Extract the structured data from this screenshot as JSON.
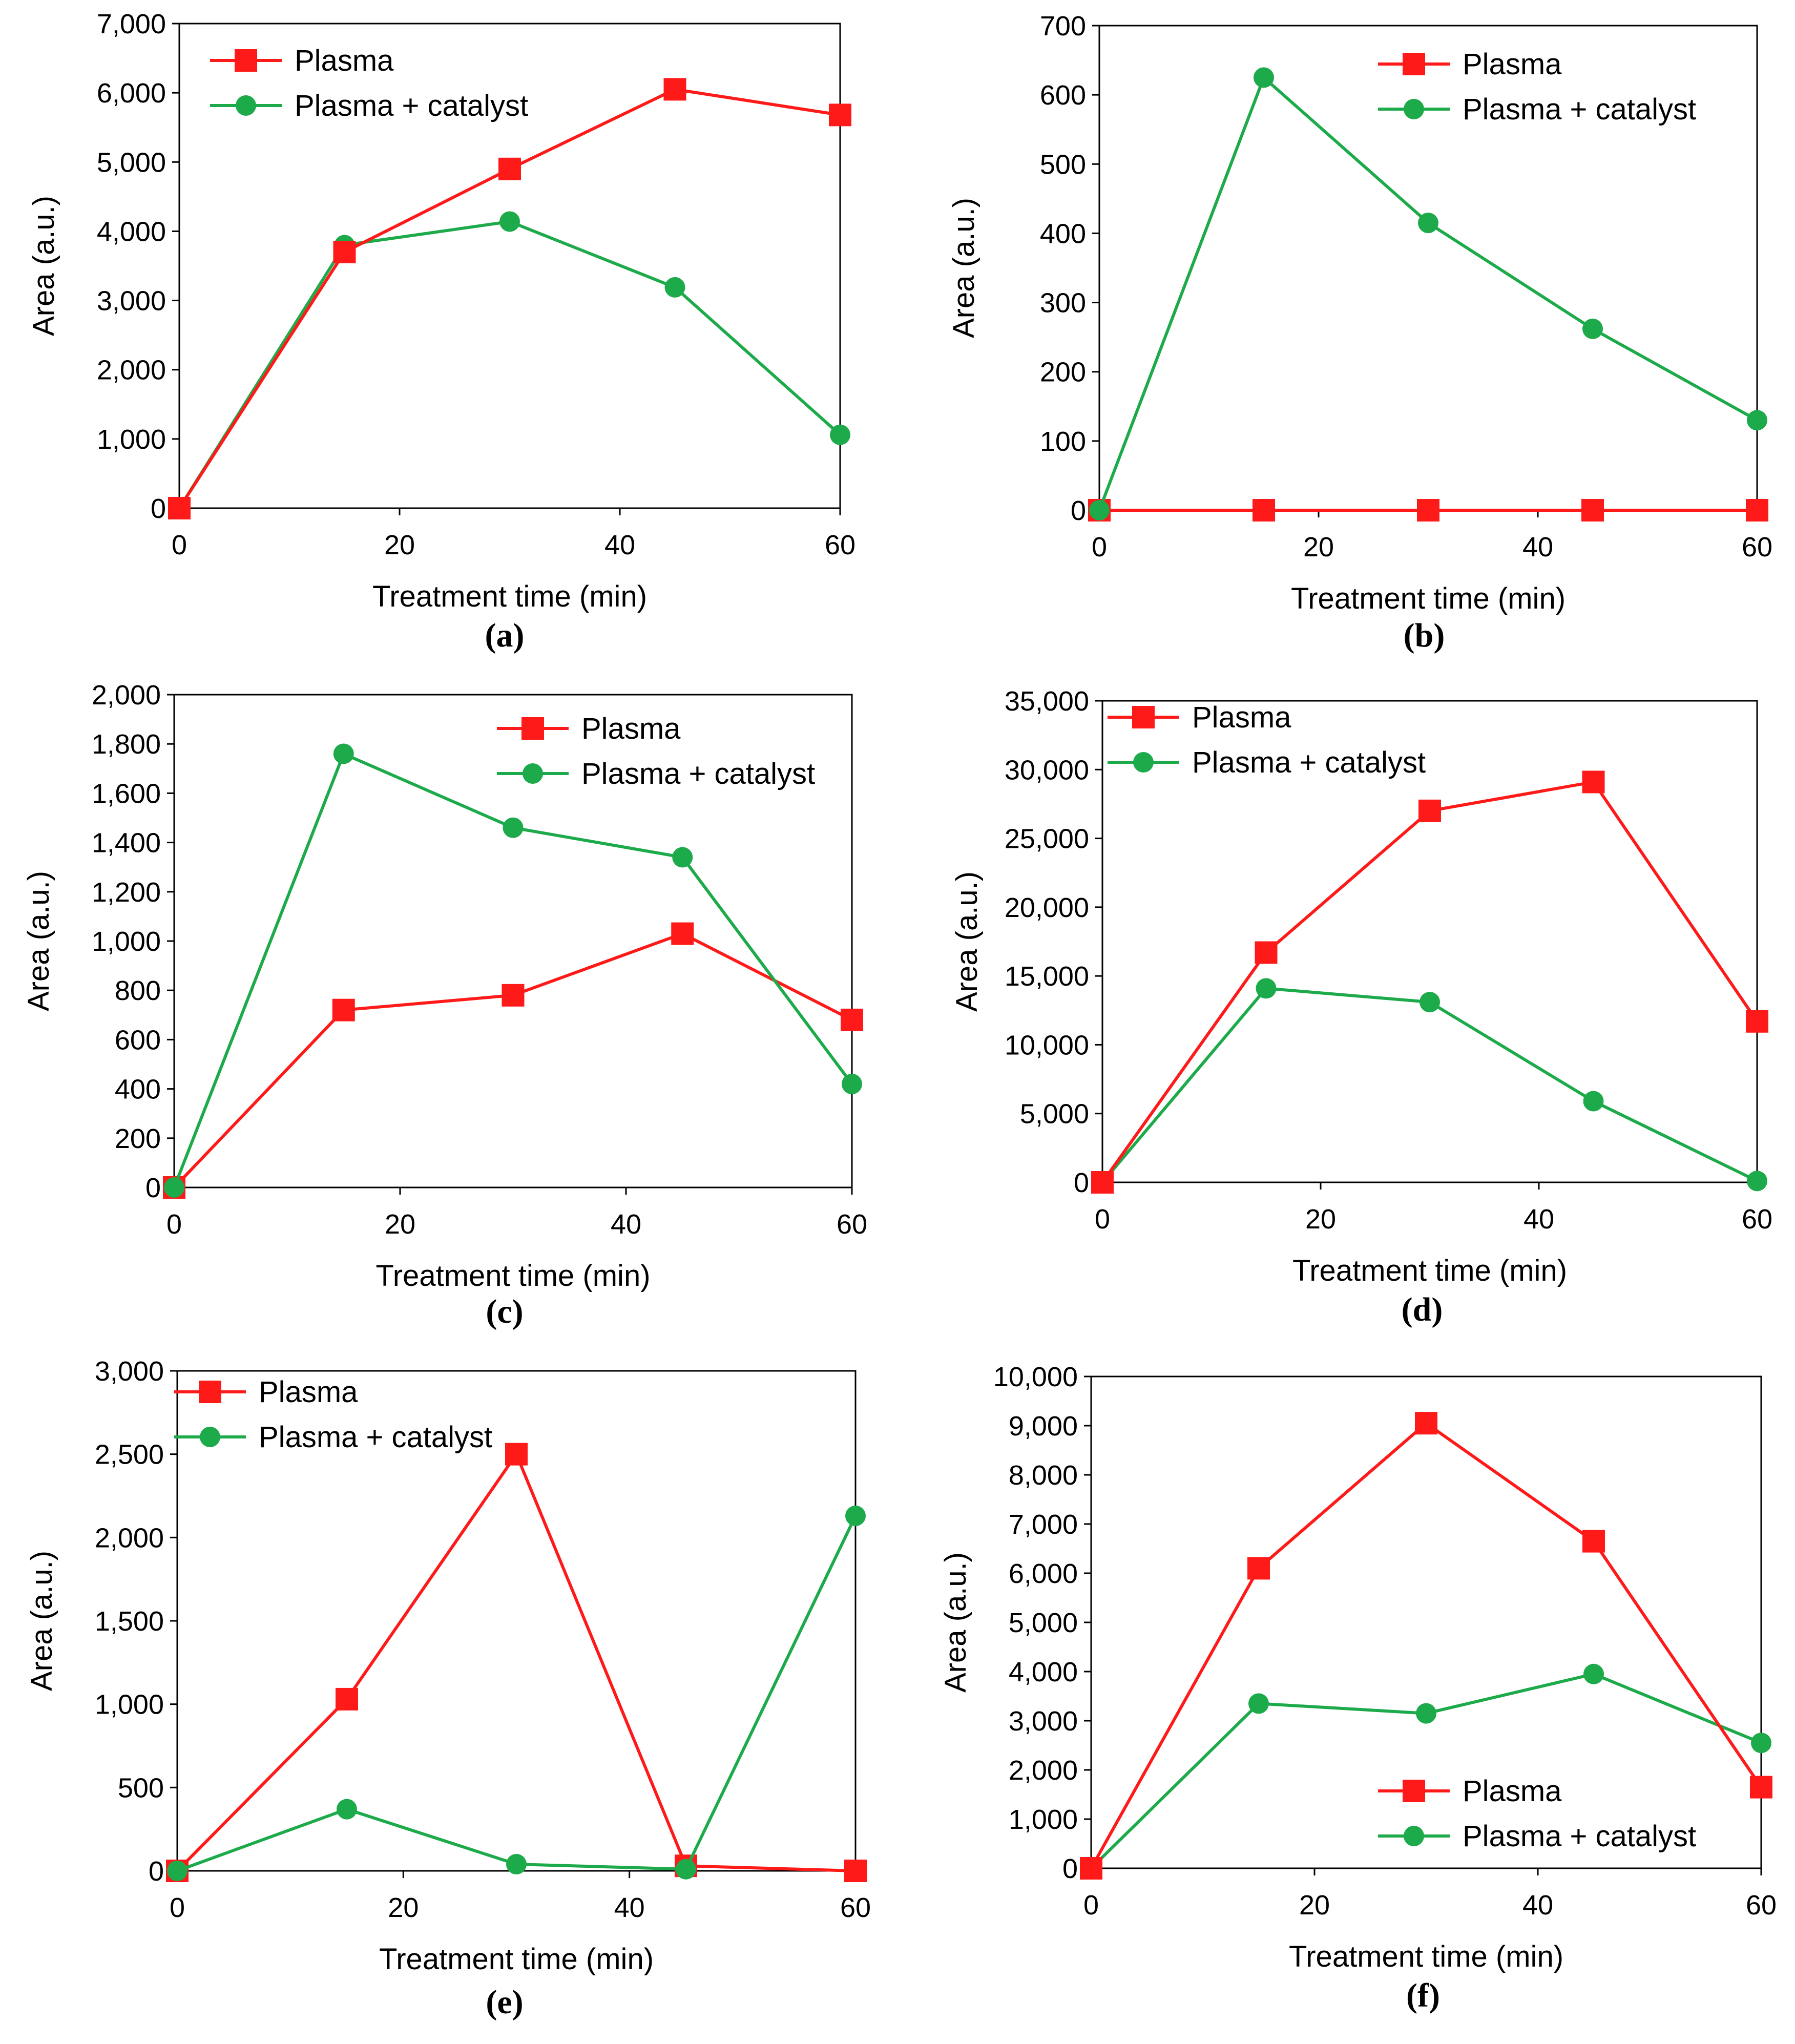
{
  "colors": {
    "plasma": "#ff1a1a",
    "plasma_catalyst": "#1daa4a",
    "axis": "#000000"
  },
  "chart_data": [
    {
      "panel": "(a)",
      "type": "line",
      "xlabel": "Treatment time (min)",
      "ylabel": "Area (a.u.)",
      "xlim": [
        0,
        60
      ],
      "ylim": [
        0,
        7000
      ],
      "xticks": [
        0,
        20,
        40,
        60
      ],
      "xtick_labels": [
        "0",
        "20",
        "40",
        "60"
      ],
      "yticks": [
        0,
        1000,
        2000,
        3000,
        4000,
        5000,
        6000,
        7000
      ],
      "ytick_labels": [
        "0",
        "1,000",
        "2,000",
        "3,000",
        "4,000",
        "5,000",
        "6,000",
        "7,000"
      ],
      "legend_position": "top-left",
      "x": [
        0,
        15,
        30,
        45,
        60
      ],
      "series": [
        {
          "name": "Plasma",
          "marker": "square",
          "values": [
            0,
            3700,
            4900,
            6050,
            5680
          ]
        },
        {
          "name": "Plasma + catalyst",
          "marker": "circle",
          "values": [
            0,
            3800,
            4140,
            3190,
            1060
          ]
        }
      ]
    },
    {
      "panel": "(b)",
      "type": "line",
      "xlabel": "Treatment time (min)",
      "ylabel": "Area (a.u.)",
      "xlim": [
        0,
        60
      ],
      "ylim": [
        0,
        700
      ],
      "xticks": [
        0,
        20,
        40,
        60
      ],
      "xtick_labels": [
        "0",
        "20",
        "40",
        "60"
      ],
      "yticks": [
        0,
        100,
        200,
        300,
        400,
        500,
        600,
        700
      ],
      "ytick_labels": [
        "0",
        "100",
        "200",
        "300",
        "400",
        "500",
        "600",
        "700"
      ],
      "legend_position": "top-right",
      "x": [
        0,
        15,
        30,
        45,
        60
      ],
      "series": [
        {
          "name": "Plasma",
          "marker": "square",
          "values": [
            0,
            0,
            0,
            0,
            0
          ]
        },
        {
          "name": "Plasma + catalyst",
          "marker": "circle",
          "values": [
            0,
            625,
            415,
            262,
            130
          ]
        }
      ]
    },
    {
      "panel": "(c)",
      "type": "line",
      "xlabel": "Treatment time (min)",
      "ylabel": "Area (a.u.)",
      "xlim": [
        0,
        60
      ],
      "ylim": [
        0,
        2000
      ],
      "xticks": [
        0,
        20,
        40,
        60
      ],
      "xtick_labels": [
        "0",
        "20",
        "40",
        "60"
      ],
      "yticks": [
        0,
        200,
        400,
        600,
        800,
        1000,
        1200,
        1400,
        1600,
        1800,
        2000
      ],
      "ytick_labels": [
        "0",
        "200",
        "400",
        "600",
        "800",
        "1,000",
        "1,200",
        "1,400",
        "1,600",
        "1,800",
        "2,000"
      ],
      "legend_position": "top-right",
      "x": [
        0,
        15,
        30,
        45,
        60
      ],
      "series": [
        {
          "name": "Plasma",
          "marker": "square",
          "values": [
            0,
            720,
            780,
            1030,
            680
          ]
        },
        {
          "name": "Plasma + catalyst",
          "marker": "circle",
          "values": [
            0,
            1760,
            1460,
            1340,
            420
          ]
        }
      ]
    },
    {
      "panel": "(d)",
      "type": "line",
      "xlabel": "Treatment time (min)",
      "ylabel": "Area (a.u.)",
      "xlim": [
        0,
        60
      ],
      "ylim": [
        0,
        35000
      ],
      "xticks": [
        0,
        20,
        40,
        60
      ],
      "xtick_labels": [
        "0",
        "20",
        "40",
        "60"
      ],
      "yticks": [
        0,
        5000,
        10000,
        15000,
        20000,
        25000,
        30000,
        35000
      ],
      "ytick_labels": [
        "0",
        "5,000",
        "10,000",
        "15,000",
        "20,000",
        "25,000",
        "30,000",
        "35,000"
      ],
      "legend_position": "top-left",
      "x": [
        0,
        15,
        30,
        45,
        60
      ],
      "series": [
        {
          "name": "Plasma",
          "marker": "square",
          "values": [
            0,
            16700,
            27000,
            29100,
            11700
          ]
        },
        {
          "name": "Plasma + catalyst",
          "marker": "circle",
          "values": [
            0,
            14100,
            13100,
            5900,
            100
          ]
        }
      ]
    },
    {
      "panel": "(e)",
      "type": "line",
      "xlabel": "Treatment time (min)",
      "ylabel": "Area (a.u.)",
      "xlim": [
        0,
        60
      ],
      "ylim": [
        0,
        3000
      ],
      "xticks": [
        0,
        20,
        40,
        60
      ],
      "xtick_labels": [
        "0",
        "20",
        "40",
        "60"
      ],
      "yticks": [
        0,
        500,
        1000,
        1500,
        2000,
        2500,
        3000
      ],
      "ytick_labels": [
        "0",
        "500",
        "1,000",
        "1,500",
        "2,000",
        "2,500",
        "3,000"
      ],
      "legend_position": "top-left",
      "x": [
        0,
        15,
        30,
        45,
        60
      ],
      "series": [
        {
          "name": "Plasma",
          "marker": "square",
          "values": [
            0,
            1030,
            2500,
            30,
            0
          ]
        },
        {
          "name": "Plasma + catalyst",
          "marker": "circle",
          "values": [
            0,
            370,
            40,
            10,
            2130
          ]
        }
      ]
    },
    {
      "panel": "(f)",
      "type": "line",
      "xlabel": "Treatment time (min)",
      "ylabel": "Area (a.u.)",
      "xlim": [
        0,
        60
      ],
      "ylim": [
        0,
        10000
      ],
      "xticks": [
        0,
        20,
        40,
        60
      ],
      "xtick_labels": [
        "0",
        "20",
        "40",
        "60"
      ],
      "yticks": [
        0,
        1000,
        2000,
        3000,
        4000,
        5000,
        6000,
        7000,
        8000,
        9000,
        10000
      ],
      "ytick_labels": [
        "0",
        "1,000",
        "2,000",
        "3,000",
        "4,000",
        "5,000",
        "6,000",
        "7,000",
        "8,000",
        "9,000",
        "10,000"
      ],
      "legend_position": "bottom-right",
      "x": [
        0,
        15,
        30,
        45,
        60
      ],
      "series": [
        {
          "name": "Plasma",
          "marker": "square",
          "values": [
            0,
            6100,
            9050,
            6650,
            1650
          ]
        },
        {
          "name": "Plasma + catalyst",
          "marker": "circle",
          "values": [
            0,
            3350,
            3150,
            3950,
            2550
          ]
        }
      ]
    }
  ]
}
